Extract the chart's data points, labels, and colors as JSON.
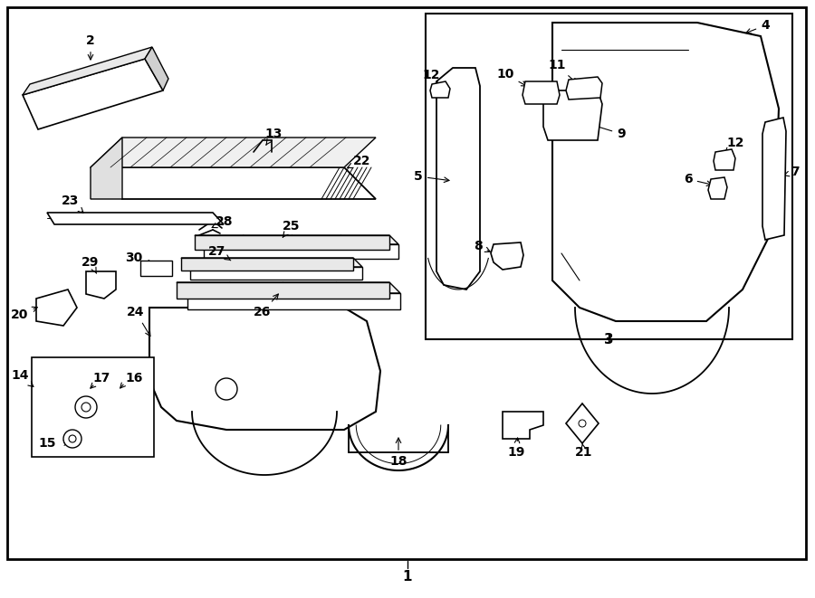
{
  "bg_color": "#ffffff",
  "fig_width": 9.0,
  "fig_height": 6.61,
  "dpi": 100,
  "line_color": "#000000",
  "font_size": 9,
  "font_size_large": 10
}
